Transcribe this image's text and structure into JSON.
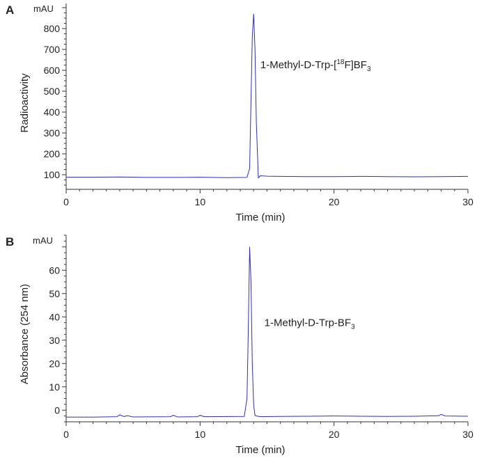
{
  "chart_data": [
    {
      "type": "line",
      "panel": "A",
      "title": "",
      "xlabel": "Time (min)",
      "ylabel": "Radioactivity",
      "yunit": "mAU",
      "xlim": [
        0,
        30
      ],
      "ylim": [
        30,
        920
      ],
      "xticks": [
        0,
        10,
        20,
        30
      ],
      "yticks": [
        100,
        200,
        300,
        400,
        500,
        600,
        700,
        800
      ],
      "annotation": {
        "prefix": "1-Methyl-D-Trp-[",
        "sup": "18",
        "mid": "F]BF",
        "sub": "3",
        "x": 14.5,
        "y": 610
      },
      "line_color": "#2b2bd6",
      "series": [
        {
          "x": [
            0,
            2,
            4,
            6,
            8,
            10,
            12,
            13.5,
            13.7,
            13.8,
            13.9,
            14.0,
            14.1,
            14.2,
            14.35,
            14.5,
            15,
            16,
            18,
            20,
            22,
            24,
            26,
            28,
            30
          ],
          "y": [
            88,
            88,
            89,
            87,
            87,
            88,
            86,
            87,
            130,
            450,
            760,
            870,
            700,
            350,
            85,
            95,
            93,
            92,
            91,
            91,
            92,
            91,
            90,
            91,
            92
          ]
        }
      ]
    },
    {
      "type": "line",
      "panel": "B",
      "title": "",
      "xlabel": "Time (min)",
      "ylabel": "Absorbance (254 nm)",
      "yunit": "mAU",
      "xlim": [
        0,
        30
      ],
      "ylim": [
        -5,
        75
      ],
      "xticks": [
        0,
        10,
        20,
        30
      ],
      "yticks": [
        0,
        10,
        20,
        30,
        40,
        50,
        60
      ],
      "annotation": {
        "prefix": "1-Methyl-D-Trp-BF",
        "sub": "3",
        "x": 14.8,
        "y": 36
      },
      "line_color": "#2b2bd6",
      "series": [
        {
          "x": [
            0,
            2,
            3.8,
            4.0,
            4.3,
            4.6,
            5,
            7.8,
            8.0,
            8.3,
            9.8,
            10.0,
            10.3,
            13.3,
            13.5,
            13.6,
            13.7,
            13.8,
            13.9,
            14.0,
            14.1,
            14.3,
            14.6,
            16,
            18,
            20,
            22,
            24,
            26,
            27.8,
            28.0,
            28.3,
            30
          ],
          "y": [
            -3,
            -3,
            -2.8,
            -2,
            -2.7,
            -2.4,
            -2.9,
            -2.8,
            -2.2,
            -2.9,
            -2.8,
            -2.2,
            -2.8,
            -2.7,
            5,
            35,
            70,
            55,
            20,
            2,
            -2.3,
            -2.6,
            -2.8,
            -2.7,
            -2.6,
            -2.5,
            -2.6,
            -2.7,
            -2.6,
            -2.4,
            -1.8,
            -2.5,
            -2.6
          ]
        }
      ]
    }
  ]
}
